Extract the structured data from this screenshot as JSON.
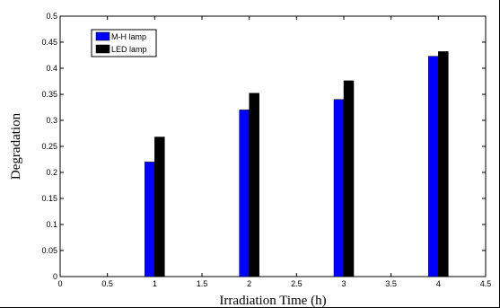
{
  "chart_data": {
    "type": "bar",
    "xlabel": "Irradiation Time (h)",
    "ylabel": "Degradation",
    "xlim": [
      0,
      4.5
    ],
    "ylim": [
      0,
      0.5
    ],
    "x_ticks": [
      "0",
      "0.5",
      "1",
      "1.5",
      "2",
      "2.5",
      "3",
      "3.5",
      "4",
      "4.5"
    ],
    "y_ticks": [
      "0",
      "0.05",
      "0.1",
      "0.15",
      "0.2",
      "0.25",
      "0.3",
      "0.35",
      "0.4",
      "0.45",
      "0.5"
    ],
    "x": [
      1,
      2,
      3,
      4
    ],
    "series": [
      {
        "name": "M-H lamp",
        "color": "#0000ff",
        "values": [
          0.22,
          0.32,
          0.34,
          0.423
        ]
      },
      {
        "name": "LED lamp",
        "color": "#000000",
        "values": [
          0.268,
          0.352,
          0.376,
          0.432
        ]
      }
    ],
    "legend_position": "top-left",
    "grid": false
  }
}
